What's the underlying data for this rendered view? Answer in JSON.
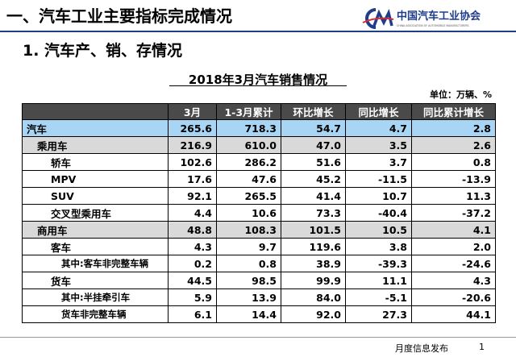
{
  "header": {
    "title": "一、汽车工业主要指标完成情况",
    "logo": {
      "name": "中国汽车工业协会",
      "english": "CHINA ASSOCIATION OF AUTOMOBILE MANUFACTURERS"
    }
  },
  "subtitle": "1. 汽车产、销、存情况",
  "table": {
    "title": "2018年3月汽车销售情况",
    "unit": "单位：万辆、%",
    "columns": [
      "",
      "3月",
      "1-3月累计",
      "环比增长",
      "同比增长",
      "同比累计增长"
    ],
    "rows": [
      [
        "汽车",
        "265.6",
        "718.3",
        "54.7",
        "4.7",
        "2.8"
      ],
      [
        "乘用车",
        "216.9",
        "610.0",
        "47.0",
        "3.5",
        "2.6"
      ],
      [
        "轿车",
        "102.6",
        "286.2",
        "51.6",
        "3.7",
        "0.8"
      ],
      [
        "MPV",
        "17.6",
        "47.6",
        "45.2",
        "-11.5",
        "-13.9"
      ],
      [
        "SUV",
        "92.1",
        "265.5",
        "41.4",
        "10.7",
        "11.3"
      ],
      [
        "交叉型乘用车",
        "4.4",
        "10.6",
        "73.3",
        "-40.4",
        "-37.2"
      ],
      [
        "商用车",
        "48.8",
        "108.3",
        "101.5",
        "10.5",
        "4.1"
      ],
      [
        "客车",
        "4.3",
        "9.7",
        "119.6",
        "3.8",
        "2.0"
      ],
      [
        "其中:客车非完整车辆",
        "0.2",
        "0.8",
        "38.9",
        "-39.3",
        "-24.6"
      ],
      [
        "货车",
        "44.5",
        "98.5",
        "99.9",
        "11.1",
        "4.3"
      ],
      [
        "其中:半挂牵引车",
        "5.9",
        "13.9",
        "84.0",
        "-5.1",
        "-20.6"
      ],
      [
        "货车非完整车辆",
        "6.1",
        "14.4",
        "92.0",
        "27.3",
        "44.1"
      ]
    ]
  },
  "footer": {
    "text": "月度信息发布",
    "page": "1"
  }
}
